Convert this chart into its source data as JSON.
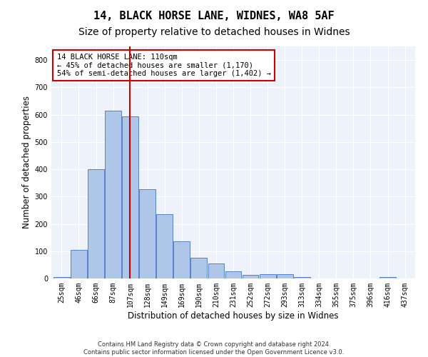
{
  "title_line1": "14, BLACK HORSE LANE, WIDNES, WA8 5AF",
  "title_line2": "Size of property relative to detached houses in Widnes",
  "xlabel": "Distribution of detached houses by size in Widnes",
  "ylabel": "Number of detached properties",
  "footer_line1": "Contains HM Land Registry data © Crown copyright and database right 2024.",
  "footer_line2": "Contains public sector information licensed under the Open Government Licence v3.0.",
  "categories": [
    "25sqm",
    "46sqm",
    "66sqm",
    "87sqm",
    "107sqm",
    "128sqm",
    "149sqm",
    "169sqm",
    "190sqm",
    "210sqm",
    "231sqm",
    "252sqm",
    "272sqm",
    "293sqm",
    "313sqm",
    "334sqm",
    "355sqm",
    "375sqm",
    "396sqm",
    "416sqm",
    "437sqm"
  ],
  "values": [
    6,
    105,
    400,
    615,
    593,
    328,
    235,
    136,
    76,
    54,
    25,
    12,
    15,
    15,
    5,
    0,
    0,
    0,
    0,
    6,
    0
  ],
  "bar_color": "#aec6e8",
  "bar_edge_color": "#4472c4",
  "background_color": "#eef3fb",
  "grid_color": "#ffffff",
  "annotation_box_text": "14 BLACK HORSE LANE: 110sqm\n← 45% of detached houses are smaller (1,170)\n54% of semi-detached houses are larger (1,402) →",
  "annotation_box_color": "#ffffff",
  "annotation_box_edge_color": "#cc0000",
  "vline_color": "#cc0000",
  "ylim": [
    0,
    850
  ],
  "yticks": [
    0,
    100,
    200,
    300,
    400,
    500,
    600,
    700,
    800
  ],
  "title_fontsize": 11,
  "subtitle_fontsize": 10,
  "axis_label_fontsize": 8.5,
  "tick_fontsize": 7,
  "ann_fontsize": 7.5,
  "footer_fontsize": 6,
  "fig_bg_color": "#ffffff"
}
